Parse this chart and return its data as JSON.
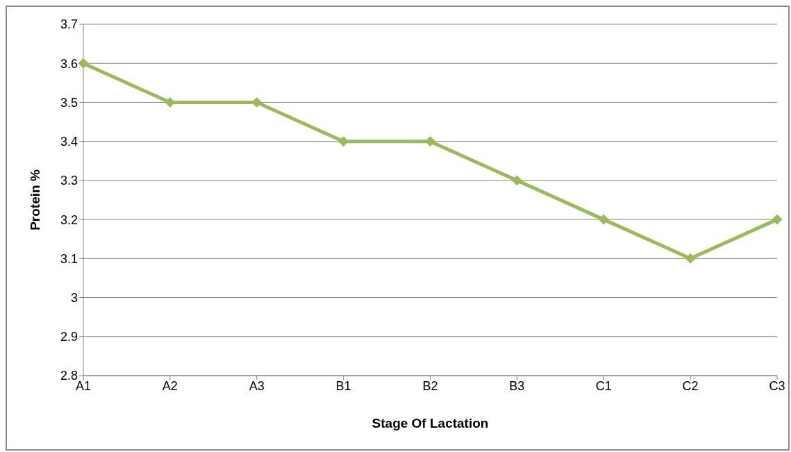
{
  "chart_data": {
    "type": "line",
    "xlabel": "Stage Of Lactation",
    "ylabel": "Protein %",
    "categories": [
      "A1",
      "A2",
      "A3",
      "B1",
      "B2",
      "B3",
      "C1",
      "C2",
      "C3"
    ],
    "series": [
      {
        "color": "#9bbb59",
        "values": [
          3.6,
          3.5,
          3.5,
          3.4,
          3.4,
          3.3,
          3.2,
          3.1,
          3.2
        ]
      }
    ],
    "ylim": [
      2.8,
      3.7
    ],
    "yticks": [
      2.8,
      2.9,
      3,
      3.1,
      3.2,
      3.3,
      3.4,
      3.5,
      3.6,
      3.7
    ],
    "grid": "y",
    "marker": "diamond",
    "line_style": "solid",
    "legend": false
  }
}
